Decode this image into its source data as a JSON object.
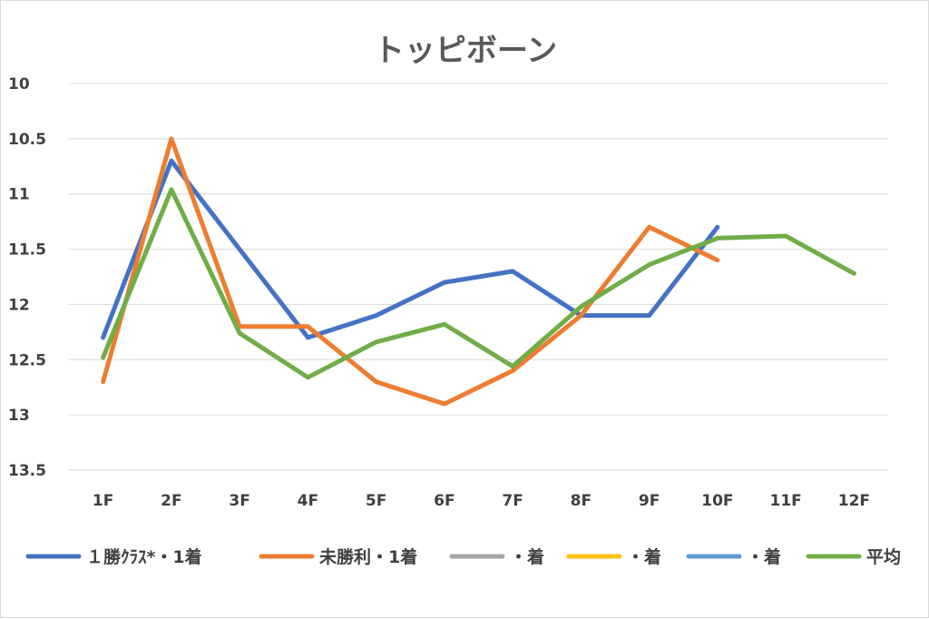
{
  "chart_data": {
    "type": "line",
    "title": "トッピボーン",
    "categories": [
      "1F",
      "2F",
      "3F",
      "4F",
      "5F",
      "6F",
      "7F",
      "8F",
      "9F",
      "10F",
      "11F",
      "12F"
    ],
    "y_axis": {
      "min": 10,
      "max": 13.5,
      "step": 0.5,
      "reversed": true,
      "tick_labels": [
        "10",
        "10.5",
        "11",
        "11.5",
        "12",
        "12.5",
        "13",
        "13.5"
      ]
    },
    "grid": true,
    "legend_position": "bottom",
    "series": [
      {
        "name": "１勝ｸﾗｽ*・1着",
        "color": "#4472c4",
        "values": [
          12.3,
          10.7,
          11.5,
          12.3,
          12.1,
          11.8,
          11.7,
          12.1,
          12.1,
          11.3,
          null,
          null
        ]
      },
      {
        "name": "未勝利・1着",
        "color": "#ed7d31",
        "values": [
          12.7,
          10.5,
          12.2,
          12.2,
          12.7,
          12.9,
          12.6,
          12.1,
          11.3,
          11.6,
          null,
          null
        ]
      },
      {
        "name": "・着",
        "color": "#a5a5a5",
        "values": [
          null,
          null,
          null,
          null,
          null,
          null,
          null,
          null,
          null,
          null,
          null,
          null
        ]
      },
      {
        "name": "・着",
        "color": "#ffc000",
        "values": [
          null,
          null,
          null,
          null,
          null,
          null,
          null,
          null,
          null,
          null,
          null,
          null
        ]
      },
      {
        "name": "・着",
        "color": "#5b9bd5",
        "values": [
          null,
          null,
          null,
          null,
          null,
          null,
          null,
          null,
          null,
          null,
          null,
          null
        ]
      },
      {
        "name": "平均",
        "color": "#70ad47",
        "values": [
          12.48,
          10.96,
          12.26,
          12.66,
          12.34,
          12.18,
          12.56,
          12.02,
          11.64,
          11.4,
          11.38,
          11.72
        ]
      }
    ]
  }
}
